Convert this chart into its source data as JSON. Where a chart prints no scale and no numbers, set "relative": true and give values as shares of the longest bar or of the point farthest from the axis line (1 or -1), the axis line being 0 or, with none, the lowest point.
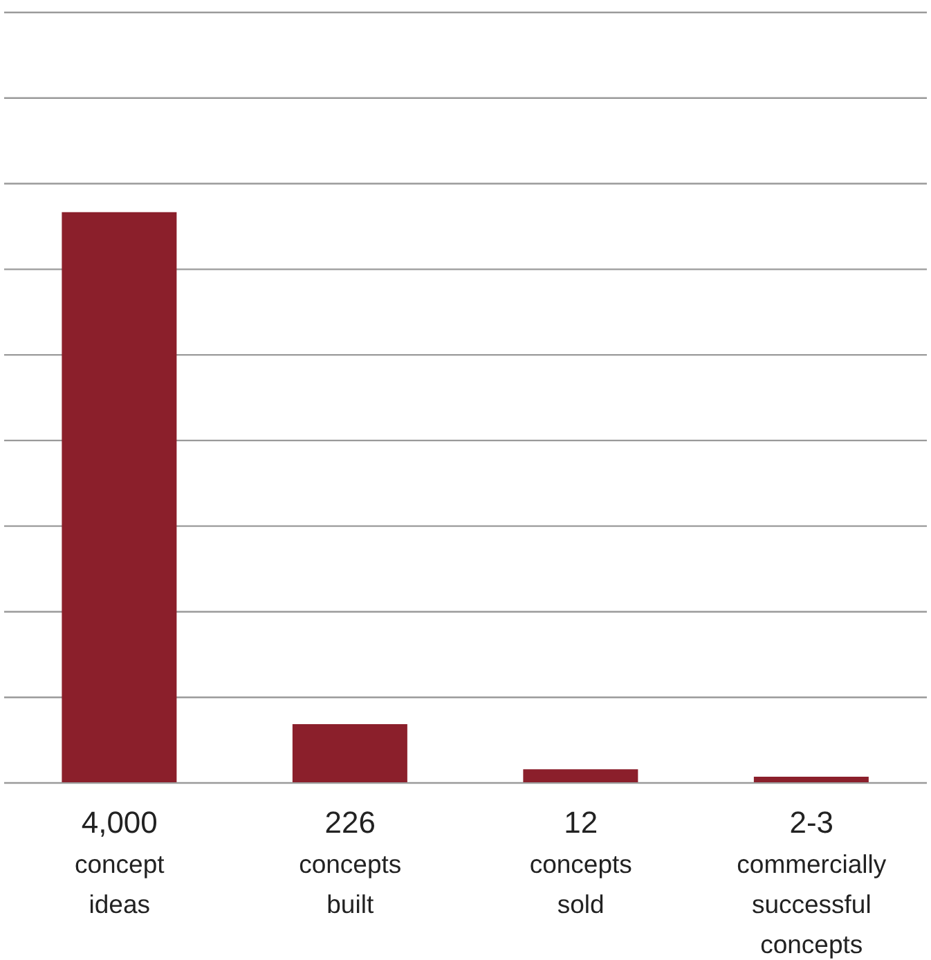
{
  "chart_data": {
    "type": "bar",
    "relative": true,
    "categories": [
      "4,000 concept ideas",
      "226 concepts built",
      "12 concepts sold",
      "2-3 commercially successful concepts"
    ],
    "values": [
      1,
      0.103,
      0.024,
      0.011
    ],
    "color": "#8b1f2b",
    "grid": "y"
  }
}
